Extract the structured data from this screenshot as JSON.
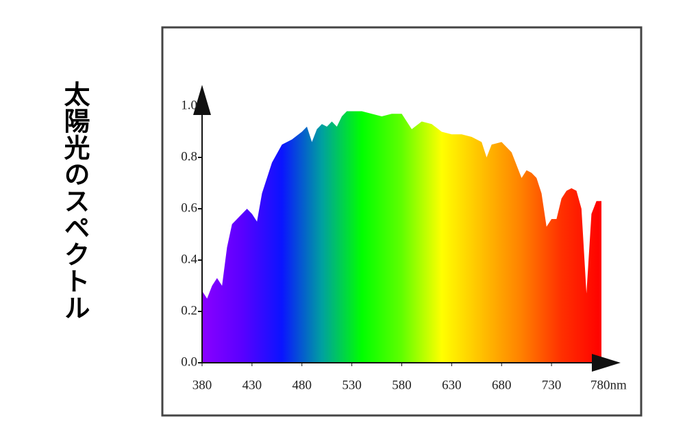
{
  "chart_data": {
    "type": "area",
    "title": "太陽光のスペクトル",
    "x": [
      380,
      385,
      390,
      395,
      400,
      405,
      410,
      420,
      425,
      430,
      435,
      440,
      450,
      460,
      470,
      480,
      485,
      490,
      495,
      500,
      505,
      510,
      515,
      520,
      525,
      530,
      540,
      550,
      560,
      570,
      580,
      590,
      600,
      610,
      620,
      630,
      640,
      650,
      660,
      665,
      670,
      680,
      690,
      700,
      705,
      710,
      715,
      720,
      725,
      730,
      735,
      740,
      745,
      750,
      755,
      760,
      765,
      770,
      775,
      780
    ],
    "series": [
      {
        "colors": [
          "#8a00ff",
          "#5a00ff",
          "#0a14ff",
          "#00a0a0",
          "#00ff00",
          "#60ff00",
          "#ffff00",
          "#ffc000",
          "#ff8000",
          "#ff3000",
          "#ff0000"
        ],
        "values": [
          0.28,
          0.25,
          0.3,
          0.33,
          0.3,
          0.45,
          0.54,
          0.58,
          0.6,
          0.58,
          0.55,
          0.66,
          0.78,
          0.85,
          0.87,
          0.9,
          0.92,
          0.86,
          0.91,
          0.93,
          0.92,
          0.94,
          0.92,
          0.96,
          0.98,
          0.98,
          0.98,
          0.97,
          0.96,
          0.97,
          0.97,
          0.91,
          0.94,
          0.93,
          0.9,
          0.89,
          0.89,
          0.88,
          0.86,
          0.8,
          0.85,
          0.86,
          0.82,
          0.72,
          0.75,
          0.74,
          0.72,
          0.66,
          0.53,
          0.56,
          0.56,
          0.64,
          0.67,
          0.68,
          0.67,
          0.6,
          0.27,
          0.58,
          0.63,
          0.63
        ]
      }
    ],
    "xlim": [
      380,
      780
    ],
    "xticks": [
      380,
      430,
      480,
      530,
      580,
      630,
      680,
      730,
      {
        "value": 780,
        "label": "780nm"
      }
    ],
    "ylim": [
      0,
      1
    ],
    "yticks": [
      {
        "value": 0,
        "label": "0.0"
      },
      0.2,
      0.4,
      0.6,
      0.8,
      {
        "value": 1,
        "label": "1.0"
      }
    ]
  }
}
